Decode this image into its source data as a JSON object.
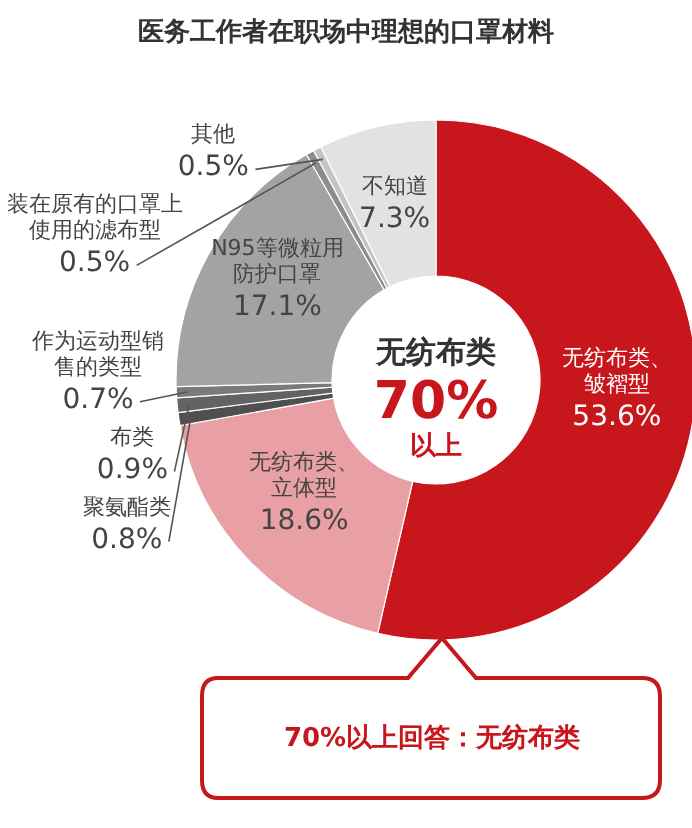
{
  "chart_data": {
    "type": "donut",
    "title": "医务工作者在职场中理想的口罩材料",
    "categories": [
      "无纺布类、皱褶型",
      "无纺布类、立体型",
      "聚氨酯类",
      "布类",
      "作为运动型销售的类型",
      "N95等微粒用防护口罩",
      "装在原有的口罩上使用的滤布型",
      "其他",
      "不知道"
    ],
    "values": [
      53.6,
      18.6,
      0.8,
      0.9,
      0.7,
      17.1,
      0.5,
      0.5,
      7.3
    ],
    "value_labels": [
      "53.6%",
      "18.6%",
      "0.8%",
      "0.9%",
      "0.7%",
      "17.1%",
      "0.5%",
      "0.5%",
      "7.3%"
    ],
    "colors": [
      "#c8161d",
      "#e8a0a4",
      "#4f4f4f",
      "#636363",
      "#7a7a7a",
      "#a3a3a3",
      "#8c8c8c",
      "#c4c4c4",
      "#e2e2e2"
    ],
    "annotations": [
      "无纺布类",
      "70%",
      "以上",
      "70%以上回答：无纺布类"
    ]
  }
}
